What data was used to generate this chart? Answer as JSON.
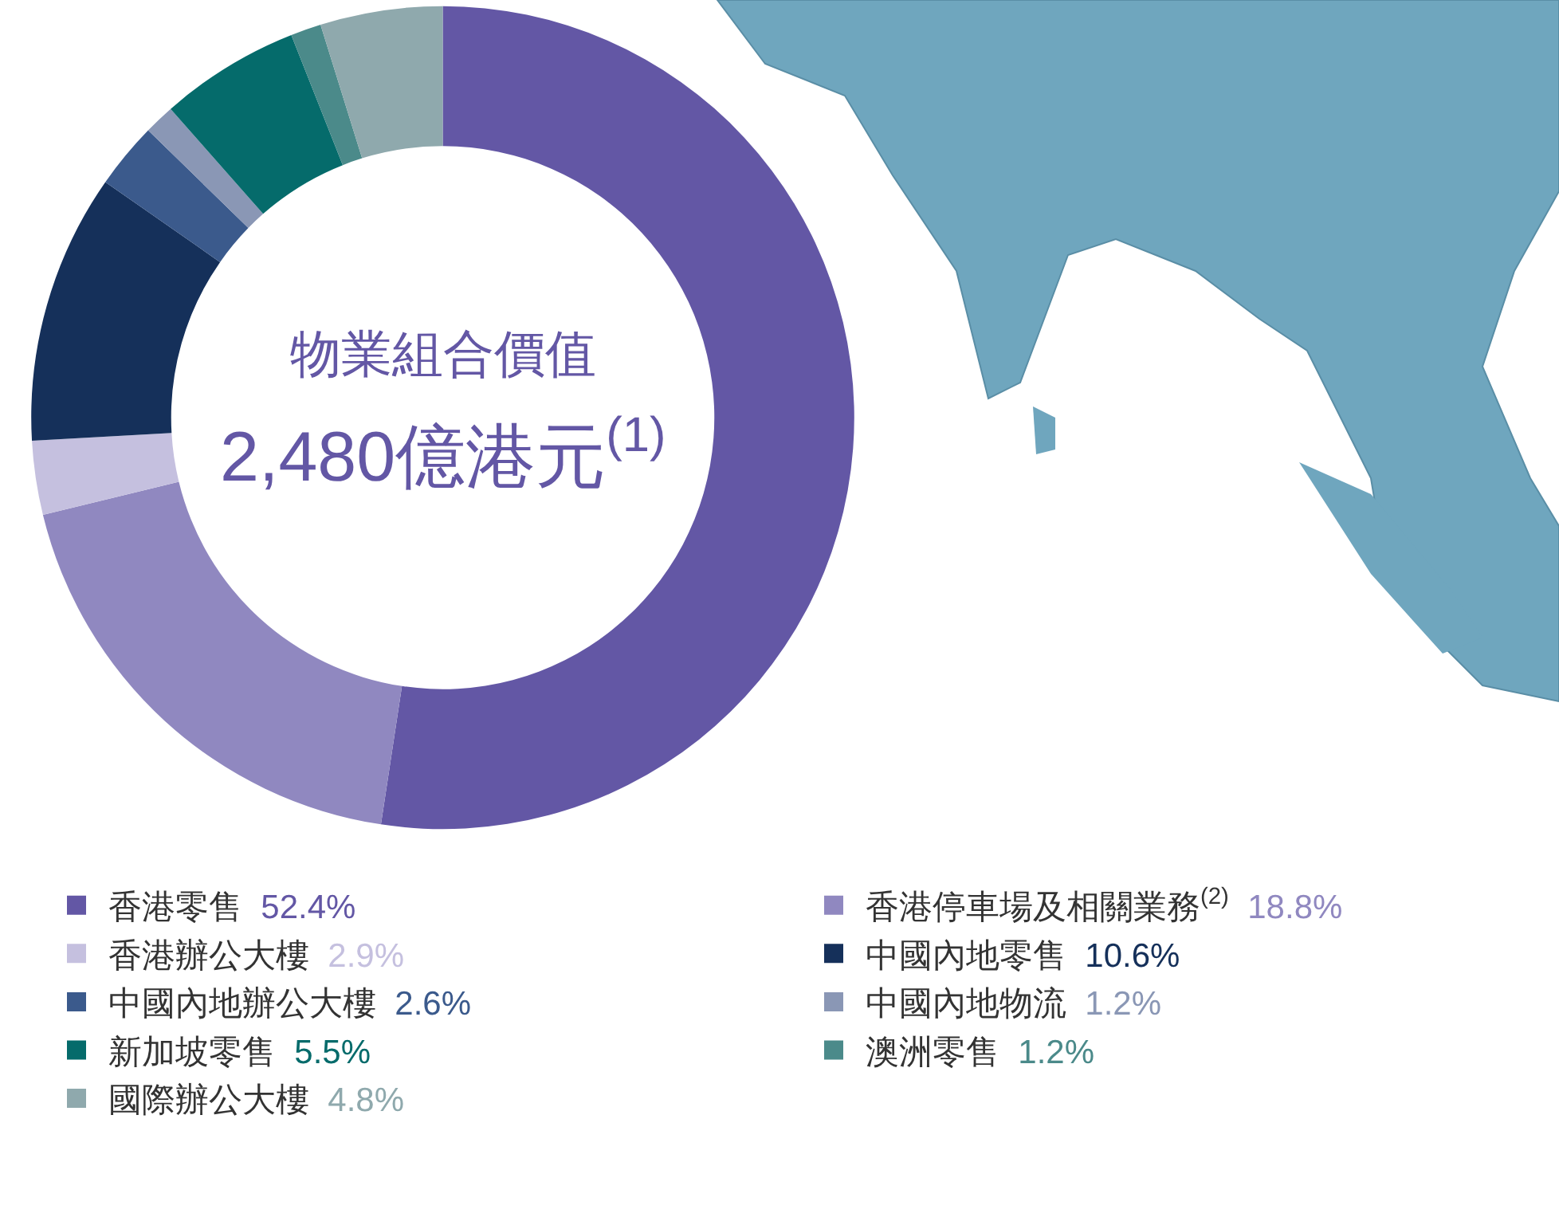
{
  "chart_data": {
    "type": "donut",
    "title": "物業組合價值",
    "annotations": [
      "2,480億港元$^{(1)}$"
    ],
    "categories": [
      "香港零售",
      "香港停車場及相關業務$^{(2)}$",
      "香港辦公大樓",
      "中國內地零售",
      "中國內地辦公大樓",
      "中國內地物流",
      "新加坡零售",
      "澳洲零售",
      "國際辦公大樓"
    ],
    "values": [
      52.4,
      18.8,
      2.9,
      10.6,
      2.6,
      1.2,
      5.5,
      1.2,
      4.8
    ],
    "value_labels": [
      "52.4%",
      "18.8%",
      "2.9%",
      "10.6%",
      "2.6%",
      "1.2%",
      "5.5%",
      "1.2%",
      "4.8%"
    ],
    "colors": [
      "#6357a5",
      "#9088c0",
      "#c5c0df",
      "#15305a",
      "#3b5a8c",
      "#8a97b5",
      "#056b6b",
      "#4b8a8a",
      "#8fa9ad"
    ],
    "legend": "bottom"
  }
}
